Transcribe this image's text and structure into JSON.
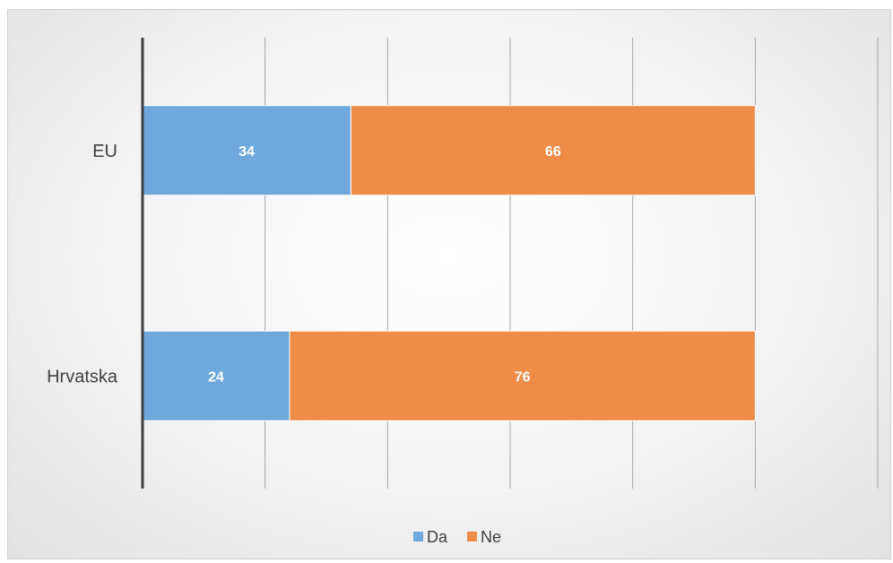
{
  "chart_data": {
    "type": "bar",
    "orientation": "horizontal",
    "stacked": true,
    "categories": [
      "EU",
      "Hrvatska"
    ],
    "series": [
      {
        "name": "Da",
        "values": [
          34,
          24
        ],
        "color": "#6FA8DC"
      },
      {
        "name": "Ne",
        "values": [
          66,
          76
        ],
        "color": "#EE8C48"
      }
    ],
    "xlim": [
      0,
      120
    ],
    "grid": true,
    "legend_position": "bottom",
    "title": "",
    "xlabel": "",
    "ylabel": ""
  }
}
